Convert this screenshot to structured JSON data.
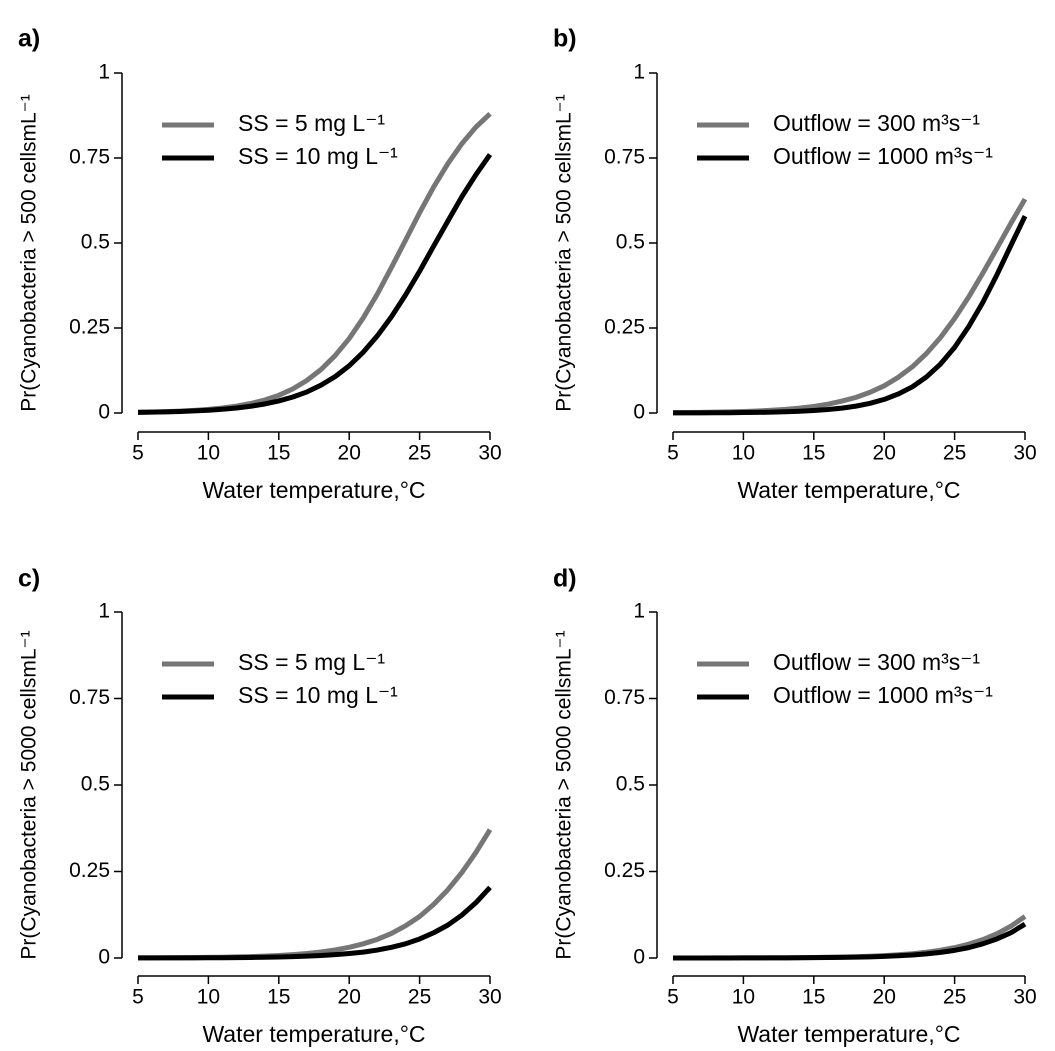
{
  "chart_data": [
    {
      "type": "line",
      "title": "a)",
      "xlabel": "Water temperature,°C",
      "ylabel": "Pr(Cyanobacteria > 500 cellsmL⁻¹",
      "x": [
        5,
        6,
        7,
        8,
        9,
        10,
        11,
        12,
        13,
        14,
        15,
        16,
        17,
        18,
        19,
        20,
        21,
        22,
        23,
        24,
        25,
        26,
        27,
        28,
        29,
        30
      ],
      "series": [
        {
          "name": "SS = 5 mg L⁻¹",
          "color": "#767676",
          "values": [
            0.0021,
            0.0029,
            0.004,
            0.0056,
            0.0077,
            0.0107,
            0.0147,
            0.0203,
            0.0279,
            0.0382,
            0.052,
            0.071,
            0.096,
            0.128,
            0.169,
            0.219,
            0.28,
            0.35,
            0.428,
            0.508,
            0.589,
            0.665,
            0.733,
            0.792,
            0.841,
            0.88
          ]
        },
        {
          "name": "SS = 10 mg L⁻¹",
          "color": "#000000",
          "values": [
            0.0019,
            0.0025,
            0.0034,
            0.0046,
            0.0061,
            0.0082,
            0.0111,
            0.0148,
            0.0199,
            0.0265,
            0.0354,
            0.047,
            0.062,
            0.082,
            0.107,
            0.139,
            0.179,
            0.227,
            0.283,
            0.347,
            0.417,
            0.491,
            0.564,
            0.636,
            0.701,
            0.76
          ]
        }
      ],
      "xlim": [
        5,
        30
      ],
      "xticks": [
        5,
        10,
        15,
        20,
        25,
        30
      ],
      "ylim": [
        0,
        1
      ],
      "yticks": [
        0,
        0.25,
        0.5,
        0.75,
        1
      ],
      "legend": "upper left"
    },
    {
      "type": "line",
      "title": "b)",
      "xlabel": "Water temperature,°C",
      "ylabel": "Pr(Cyanobacteria > 500 cellsmL⁻¹",
      "x": [
        5,
        6,
        7,
        8,
        9,
        10,
        11,
        12,
        13,
        14,
        15,
        16,
        17,
        18,
        19,
        20,
        21,
        22,
        23,
        24,
        25,
        26,
        27,
        28,
        29,
        30
      ],
      "series": [
        {
          "name": "Outflow = 300 m³s⁻¹",
          "color": "#767676",
          "values": [
            0.001,
            0.0014,
            0.0018,
            0.0025,
            0.0033,
            0.0045,
            0.006,
            0.008,
            0.0108,
            0.0144,
            0.0193,
            0.026,
            0.035,
            0.046,
            0.061,
            0.08,
            0.105,
            0.136,
            0.175,
            0.222,
            0.278,
            0.341,
            0.411,
            0.484,
            0.558,
            0.629
          ]
        },
        {
          "name": "Outflow = 1000 m³s⁻¹",
          "color": "#000000",
          "values": [
            0.0002,
            0.0003,
            0.0004,
            0.0006,
            0.0009,
            0.0013,
            0.0018,
            0.0025,
            0.0036,
            0.0051,
            0.0072,
            0.0102,
            0.0143,
            0.0202,
            0.0285,
            0.04,
            0.056,
            0.077,
            0.106,
            0.144,
            0.193,
            0.254,
            0.325,
            0.406,
            0.493,
            0.579
          ]
        }
      ],
      "xlim": [
        5,
        30
      ],
      "xticks": [
        5,
        10,
        15,
        20,
        25,
        30
      ],
      "ylim": [
        0,
        1
      ],
      "yticks": [
        0,
        0.25,
        0.5,
        0.75,
        1
      ],
      "legend": "upper left"
    },
    {
      "type": "line",
      "title": "c)",
      "xlabel": "Water temperature,°C",
      "ylabel": "Pr(Cyanobacteria > 5000 cellsmL⁻¹",
      "x": [
        5,
        6,
        7,
        8,
        9,
        10,
        11,
        12,
        13,
        14,
        15,
        16,
        17,
        18,
        19,
        20,
        21,
        22,
        23,
        24,
        25,
        26,
        27,
        28,
        29,
        30
      ],
      "series": [
        {
          "name": "SS = 5 mg L⁻¹",
          "color": "#767676",
          "values": [
            0.0004,
            0.0005,
            0.0007,
            0.001,
            0.0013,
            0.0017,
            0.0023,
            0.0031,
            0.0041,
            0.0055,
            0.0073,
            0.0098,
            0.0131,
            0.0174,
            0.0232,
            0.031,
            0.041,
            0.054,
            0.071,
            0.093,
            0.12,
            0.155,
            0.197,
            0.247,
            0.305,
            0.371
          ]
        },
        {
          "name": "SS = 10 mg L⁻¹",
          "color": "#000000",
          "values": [
            0.0002,
            0.0002,
            0.0003,
            0.0004,
            0.0005,
            0.0007,
            0.0009,
            0.0012,
            0.0016,
            0.0022,
            0.003,
            0.004,
            0.0054,
            0.0072,
            0.0097,
            0.013,
            0.017,
            0.023,
            0.031,
            0.041,
            0.055,
            0.073,
            0.095,
            0.124,
            0.16,
            0.204
          ]
        }
      ],
      "xlim": [
        5,
        30
      ],
      "xticks": [
        5,
        10,
        15,
        20,
        25,
        30
      ],
      "ylim": [
        0,
        1
      ],
      "yticks": [
        0,
        0.25,
        0.5,
        0.75,
        1
      ],
      "legend": "upper left"
    },
    {
      "type": "line",
      "title": "d)",
      "xlabel": "Water temperature,°C",
      "ylabel": "Pr(Cyanobacteria > 5000 cellsmL⁻¹",
      "x": [
        5,
        6,
        7,
        8,
        9,
        10,
        11,
        12,
        13,
        14,
        15,
        16,
        17,
        18,
        19,
        20,
        21,
        22,
        23,
        24,
        25,
        26,
        27,
        28,
        29,
        30
      ],
      "series": [
        {
          "name": "Outflow = 300 m³s⁻¹",
          "color": "#767676",
          "values": [
            0.0001,
            0.0001,
            0.0001,
            0.0002,
            0.0003,
            0.0004,
            0.0005,
            0.0006,
            0.0009,
            0.0012,
            0.0016,
            0.0021,
            0.0028,
            0.0038,
            0.0051,
            0.0069,
            0.0093,
            0.0124,
            0.0167,
            0.0224,
            0.03,
            0.04,
            0.053,
            0.07,
            0.092,
            0.12
          ]
        },
        {
          "name": "Outflow = 1000 m³s⁻¹",
          "color": "#000000",
          "values": [
            4e-05,
            0.0001,
            0.0001,
            0.0001,
            0.0001,
            0.0002,
            0.0003,
            0.0004,
            0.0005,
            0.0007,
            0.001,
            0.0013,
            0.0018,
            0.0025,
            0.0034,
            0.0047,
            0.0064,
            0.0087,
            0.0119,
            0.0162,
            0.0221,
            0.03,
            0.041,
            0.055,
            0.073,
            0.098
          ]
        }
      ],
      "xlim": [
        5,
        30
      ],
      "xticks": [
        5,
        10,
        15,
        20,
        25,
        30
      ],
      "ylim": [
        0,
        1
      ],
      "yticks": [
        0,
        0.25,
        0.5,
        0.75,
        1
      ],
      "legend": "upper left"
    }
  ]
}
